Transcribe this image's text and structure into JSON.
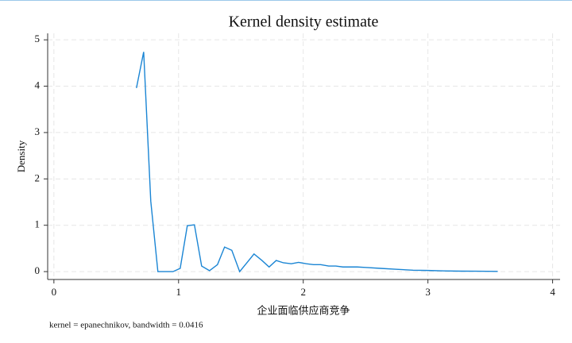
{
  "chart_data": {
    "type": "line",
    "title": "Kernel density estimate",
    "x_label": "企业面临供应商竞争",
    "y_label": "Density",
    "note": "kernel = epanechnikov, bandwidth = 0.0416",
    "color": "#1a85d4",
    "grid": true,
    "x": [
      0.662,
      0.72,
      0.777,
      0.834,
      0.955,
      1.013,
      1.07,
      1.127,
      1.185,
      1.248,
      1.312,
      1.369,
      1.427,
      1.49,
      1.548,
      1.605,
      1.669,
      1.726,
      1.783,
      1.841,
      1.904,
      1.962,
      2.025,
      2.083,
      2.14,
      2.204,
      2.261,
      2.318,
      2.433,
      2.497,
      2.62,
      2.75,
      2.88,
      3.0,
      3.13,
      3.26,
      3.39,
      3.56
    ],
    "values": [
      3.96,
      4.74,
      1.52,
      0,
      0,
      0.07,
      0.99,
      1.01,
      0.12,
      0.02,
      0.15,
      0.53,
      0.46,
      0,
      0.19,
      0.38,
      0.24,
      0.1,
      0.24,
      0.19,
      0.17,
      0.2,
      0.17,
      0.15,
      0.15,
      0.12,
      0.12,
      0.1,
      0.1,
      0.09,
      0.07,
      0.05,
      0.03,
      0.025,
      0.015,
      0.01,
      0.008,
      0.005
    ],
    "xlim": [
      -0.05,
      4.06
    ],
    "ylim": [
      -0.17,
      5.14
    ],
    "xticks": [
      0,
      1,
      2,
      3,
      4
    ],
    "yticks": [
      0,
      1,
      2,
      3,
      4,
      5
    ]
  }
}
